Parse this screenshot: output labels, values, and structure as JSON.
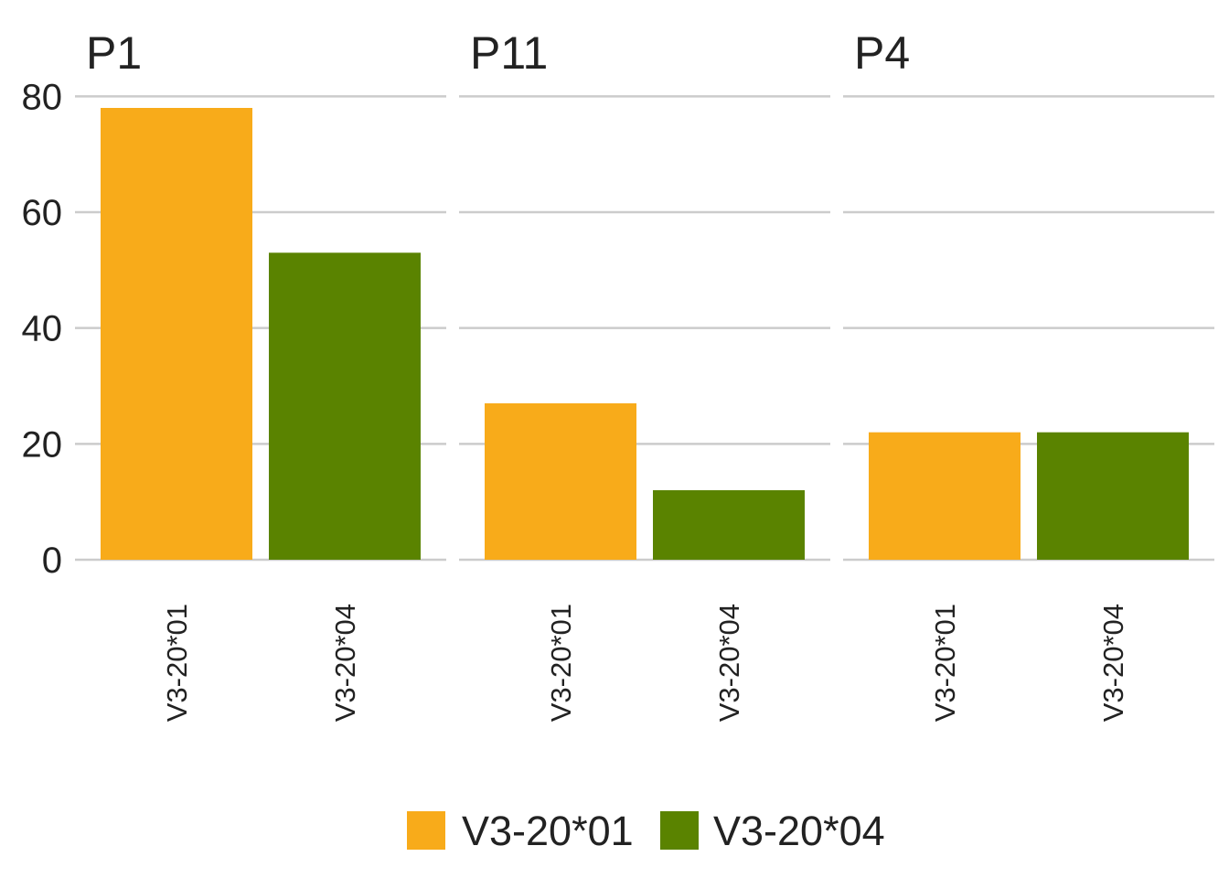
{
  "chart_data": {
    "type": "bar",
    "facets": [
      {
        "title": "P1",
        "categories": [
          "V3-20*01",
          "V3-20*04"
        ],
        "values": [
          78,
          53
        ]
      },
      {
        "title": "P11",
        "categories": [
          "V3-20*01",
          "V3-20*04"
        ],
        "values": [
          27,
          12
        ]
      },
      {
        "title": "P4",
        "categories": [
          "V3-20*01",
          "V3-20*04"
        ],
        "values": [
          22,
          22
        ]
      }
    ],
    "series": [
      {
        "name": "V3-20*01",
        "color": "#F8AB1A"
      },
      {
        "name": "V3-20*04",
        "color": "#5A8300"
      }
    ],
    "ylim": [
      0,
      84
    ],
    "yticks": [
      0,
      20,
      40,
      60,
      80
    ],
    "grid": true,
    "legend_position": "bottom",
    "x_tick_rotation": "vertical"
  }
}
